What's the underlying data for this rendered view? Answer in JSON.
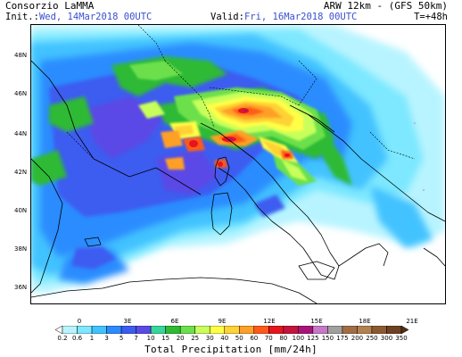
{
  "header": {
    "provider": "Consorzio LaMMA",
    "model": "ARW 12km - (GFS 50km)",
    "init_label": "Init.:",
    "init_value": "Wed, 14Mar2018 00UTC",
    "valid_label": "Valid:",
    "valid_value": "Fri, 16Mar2018 00UTC",
    "forecast_time": "T=+48h"
  },
  "map": {
    "lat_labels": [
      "48N",
      "46N",
      "44N",
      "42N",
      "40N",
      "38N",
      "36N"
    ],
    "lon_labels": [
      "0",
      "3E",
      "6E",
      "9E",
      "12E",
      "15E",
      "18E",
      "21E"
    ]
  },
  "legend": {
    "title": "Total Precipitation [mm/24h]",
    "levels": [
      "0.2",
      "0.6",
      "1",
      "3",
      "5",
      "7",
      "10",
      "15",
      "20",
      "25",
      "30",
      "40",
      "50",
      "60",
      "70",
      "80",
      "100",
      "125",
      "150",
      "175",
      "200",
      "250",
      "300",
      "350"
    ],
    "colors": [
      "#ffffff",
      "#b8f4ff",
      "#7de8ff",
      "#42c2ff",
      "#2c8cff",
      "#3c5cf0",
      "#5a4ae6",
      "#37d69a",
      "#2fba34",
      "#6ce04c",
      "#c8ff5a",
      "#ffff46",
      "#ffd235",
      "#ffa028",
      "#ff5a19",
      "#e6141e",
      "#c3143c",
      "#aa1478",
      "#c878c8",
      "#a0a0a0",
      "#a06e46",
      "#b48250",
      "#8c5a32",
      "#6e4123",
      "#503014"
    ]
  }
}
